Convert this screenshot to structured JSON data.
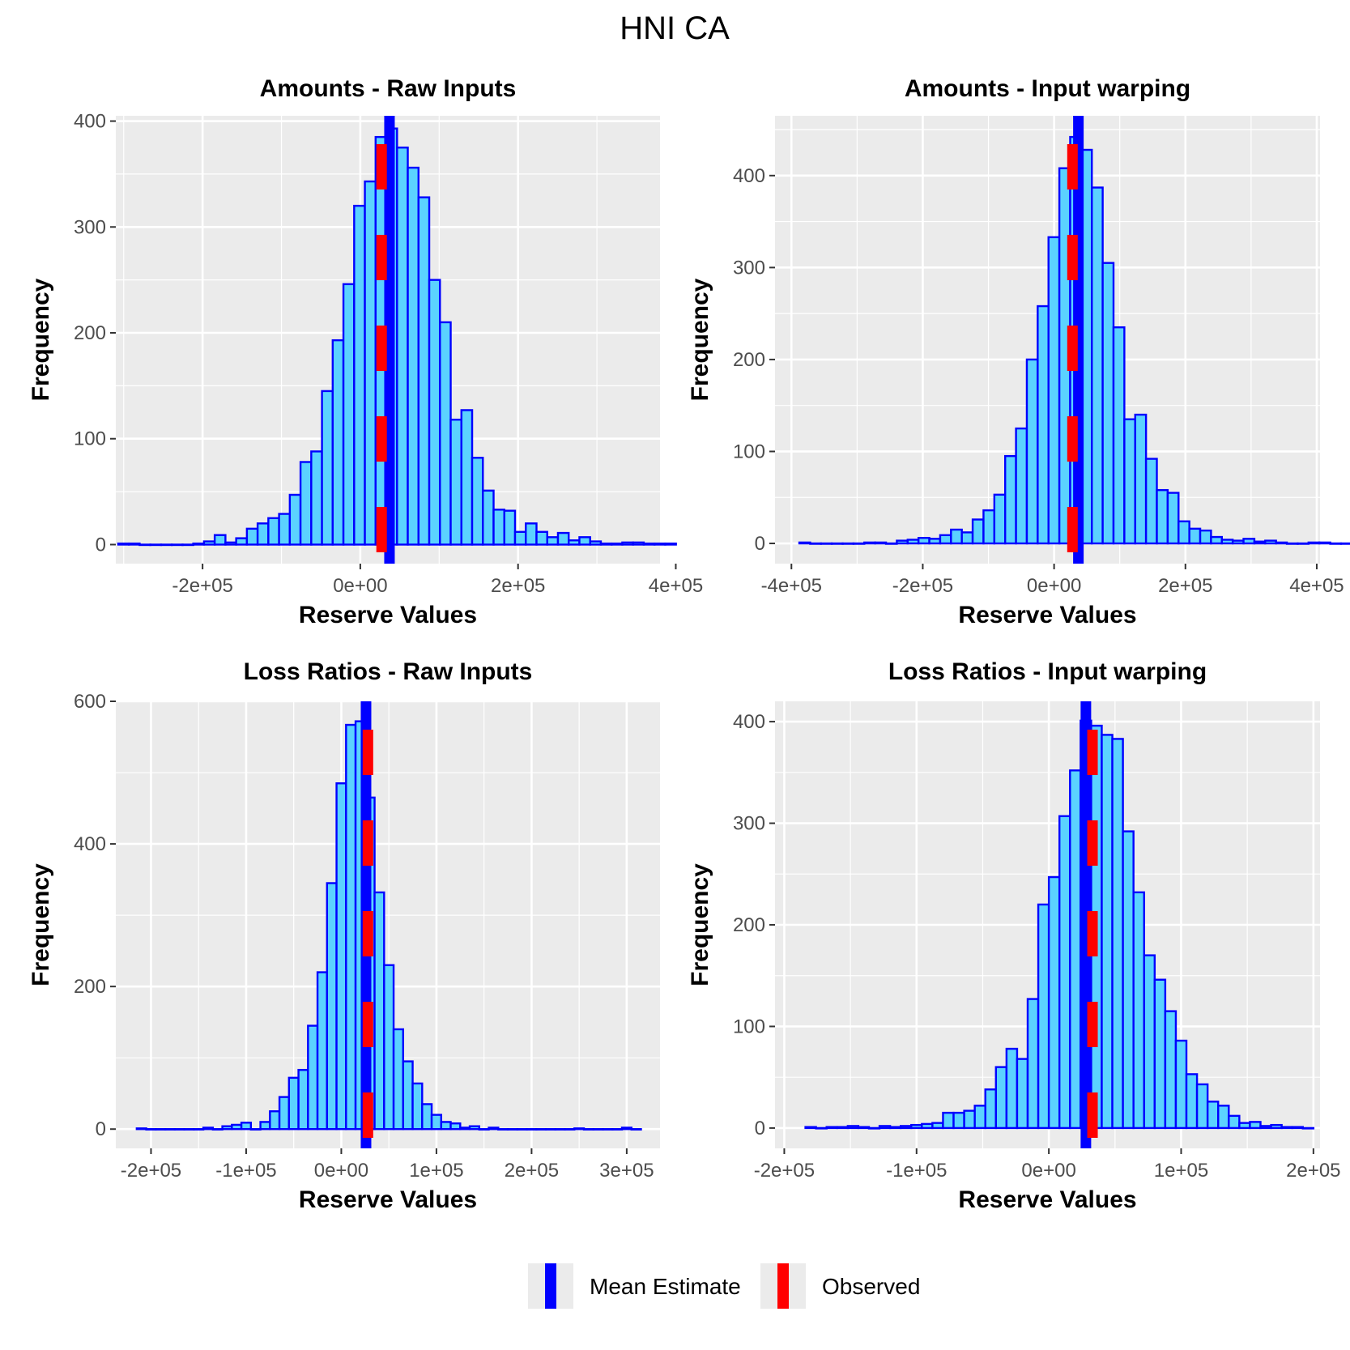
{
  "figure": {
    "title": "HNI CA"
  },
  "legend": {
    "items": [
      {
        "label": "Mean Estimate",
        "color": "#0000FF"
      },
      {
        "label": "Observed",
        "color": "#FF0000"
      }
    ]
  },
  "colors": {
    "panel_bg": "#EBEBEB",
    "grid": "#FFFFFF",
    "bar_fill": "#5BD2FF",
    "bar_edge": "#0000FF",
    "mean_line": "#0000FF",
    "observed_line": "#FF0000"
  },
  "chart_data": [
    {
      "type": "bar",
      "title": "Amounts - Raw Inputs",
      "xlabel": "Reserve Values",
      "ylabel": "Frequency",
      "xlim": [
        -310000,
        380000
      ],
      "ylim": [
        -18,
        405
      ],
      "xticks": [
        -200000,
        0,
        200000,
        400000
      ],
      "xtick_labels": [
        "-2e+05",
        "0e+00",
        "2e+05",
        "4e+05"
      ],
      "yticks": [
        0,
        100,
        200,
        300,
        400
      ],
      "bin_start": -307000,
      "bin_width": 13600,
      "counts": [
        1,
        1,
        0,
        0,
        0,
        0,
        0,
        1,
        3,
        9,
        2,
        6,
        15,
        20,
        25,
        29,
        47,
        78,
        88,
        145,
        193,
        246,
        320,
        343,
        385,
        393,
        375,
        356,
        328,
        250,
        210,
        118,
        127,
        82,
        51,
        33,
        32,
        12,
        20,
        12,
        7,
        11,
        4,
        7,
        3,
        1,
        1,
        2,
        2,
        1,
        1,
        1
      ],
      "mean": 37000,
      "observed": 27000
    },
    {
      "type": "bar",
      "title": "Amounts - Input warping",
      "xlabel": "Reserve Values",
      "ylabel": "Frequency",
      "xlim": [
        -425000,
        405000
      ],
      "ylim": [
        -22,
        465
      ],
      "xticks": [
        -400000,
        -200000,
        0,
        200000,
        400000
      ],
      "xtick_labels": [
        "-4e+05",
        "-2e+05",
        "0e+00",
        "2e+05",
        "4e+05"
      ],
      "yticks": [
        0,
        100,
        200,
        300,
        400
      ],
      "bin_start": -388000,
      "bin_width": 16500,
      "counts": [
        1,
        0,
        0,
        0,
        0,
        0,
        1,
        1,
        0,
        3,
        4,
        6,
        5,
        9,
        15,
        12,
        26,
        36,
        53,
        95,
        125,
        200,
        258,
        333,
        408,
        442,
        428,
        387,
        305,
        235,
        135,
        140,
        92,
        58,
        55,
        24,
        16,
        14,
        7,
        4,
        3,
        5,
        2,
        3,
        1,
        0,
        0,
        1,
        1,
        0,
        0,
        0
      ],
      "mean": 37000,
      "observed": 28000
    },
    {
      "type": "bar",
      "title": "Loss Ratios - Raw Inputs",
      "xlabel": "Reserve Values",
      "ylabel": "Frequency",
      "xlim": [
        -237000,
        335000
      ],
      "ylim": [
        -27,
        600
      ],
      "xticks": [
        -200000,
        -100000,
        0,
        100000,
        200000,
        300000
      ],
      "xtick_labels": [
        "-2e+05",
        "-1e+05",
        "0e+00",
        "1e+05",
        "2e+05",
        "3e+05"
      ],
      "yticks": [
        0,
        200,
        400,
        600
      ],
      "bin_start": -215000,
      "bin_width": 10000,
      "counts": [
        1,
        0,
        0,
        0,
        0,
        0,
        0,
        2,
        0,
        4,
        6,
        9,
        0,
        10,
        25,
        45,
        72,
        83,
        145,
        220,
        345,
        485,
        567,
        572,
        465,
        332,
        230,
        140,
        95,
        64,
        35,
        20,
        10,
        8,
        2,
        4,
        0,
        2,
        0,
        0,
        0,
        0,
        0,
        0,
        0,
        0,
        1,
        0,
        0,
        0,
        0,
        2,
        0
      ],
      "mean": 26000,
      "observed": 28000
    },
    {
      "type": "bar",
      "title": "Loss Ratios - Input warping",
      "xlabel": "Reserve Values",
      "ylabel": "Frequency",
      "xlim": [
        -207000,
        205000
      ],
      "ylim": [
        -20,
        420
      ],
      "xticks": [
        -200000,
        -100000,
        0,
        100000,
        200000
      ],
      "xtick_labels": [
        "-2e+05",
        "-1e+05",
        "0e+00",
        "1e+05",
        "2e+05"
      ],
      "yticks": [
        0,
        100,
        200,
        300,
        400
      ],
      "bin_start": -184000,
      "bin_width": 8000,
      "counts": [
        1,
        0,
        1,
        1,
        2,
        1,
        0,
        2,
        1,
        2,
        3,
        4,
        5,
        15,
        15,
        17,
        22,
        38,
        60,
        78,
        68,
        127,
        220,
        247,
        307,
        352,
        401,
        396,
        387,
        383,
        292,
        232,
        170,
        146,
        115,
        86,
        53,
        43,
        26,
        22,
        12,
        5,
        6,
        2,
        3,
        1,
        1,
        0
      ],
      "mean": 28000,
      "observed": 33000
    }
  ]
}
